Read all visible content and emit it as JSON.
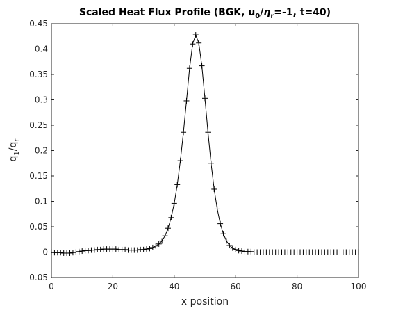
{
  "chart_data": {
    "type": "line",
    "title_parts": {
      "prefix": "Scaled Heat Flux Profile (BGK, u",
      "sub1": "0",
      "slash": "/",
      "eta": "η",
      "sub2": "r",
      "suffix": "=-1, t=40)"
    },
    "xlabel": "x position",
    "ylabel_parts": {
      "q1": "q",
      "sub1": "1",
      "slash": "/q",
      "sub2": "r"
    },
    "xlim": [
      0,
      100
    ],
    "ylim": [
      -0.05,
      0.45
    ],
    "x_ticks": [
      "0",
      "20",
      "40",
      "60",
      "80",
      "100"
    ],
    "y_ticks": [
      "-0.05",
      "0",
      "0.05",
      "0.1",
      "0.15",
      "0.2",
      "0.25",
      "0.3",
      "0.35",
      "0.4",
      "0.45"
    ],
    "grid": false,
    "line_color": "#000000",
    "marker": "plus",
    "series": [
      {
        "x": [
          0,
          1,
          2,
          3,
          4,
          5,
          6,
          7,
          8,
          9,
          10,
          11,
          12,
          13,
          14,
          15,
          16,
          17,
          18,
          19,
          20,
          21,
          22,
          23,
          24,
          25,
          26,
          27,
          28,
          29,
          30,
          31,
          32,
          33,
          34,
          35,
          36,
          37,
          38,
          39,
          40,
          41,
          42,
          43,
          44,
          45,
          46,
          47,
          48,
          49,
          50,
          51,
          52,
          53,
          54,
          55,
          56,
          57,
          58,
          59,
          60,
          61,
          62,
          63,
          64,
          65,
          66,
          67,
          68,
          69,
          70,
          71,
          72,
          73,
          74,
          75,
          76,
          77,
          78,
          79,
          80,
          81,
          82,
          83,
          84,
          85,
          86,
          87,
          88,
          89,
          90,
          91,
          92,
          93,
          94,
          95,
          96,
          97,
          98,
          99,
          100
        ],
        "values": [
          0.0,
          -0.001,
          -0.001,
          -0.001,
          -0.002,
          -0.002,
          -0.002,
          -0.001,
          0.0,
          0.001,
          0.002,
          0.003,
          0.003,
          0.004,
          0.004,
          0.005,
          0.005,
          0.006,
          0.006,
          0.006,
          0.006,
          0.006,
          0.005,
          0.005,
          0.005,
          0.004,
          0.004,
          0.004,
          0.004,
          0.005,
          0.005,
          0.006,
          0.007,
          0.009,
          0.012,
          0.016,
          0.022,
          0.032,
          0.047,
          0.068,
          0.096,
          0.133,
          0.18,
          0.236,
          0.298,
          0.362,
          0.41,
          0.428,
          0.412,
          0.367,
          0.303,
          0.236,
          0.175,
          0.124,
          0.085,
          0.056,
          0.036,
          0.022,
          0.013,
          0.008,
          0.005,
          0.003,
          0.002,
          0.001,
          0.001,
          0.001,
          0.0,
          0.0,
          0.0,
          0.0,
          0.0,
          0.0,
          0.0,
          0.0,
          0.0,
          0.0,
          0.0,
          0.0,
          0.0,
          0.0,
          0.0,
          0.0,
          0.0,
          0.0,
          0.0,
          0.0,
          0.0,
          0.0,
          0.0,
          0.0,
          0.0,
          0.0,
          0.0,
          0.0,
          0.0,
          0.0,
          0.0,
          0.0,
          0.0,
          0.0,
          0.0
        ]
      }
    ]
  }
}
